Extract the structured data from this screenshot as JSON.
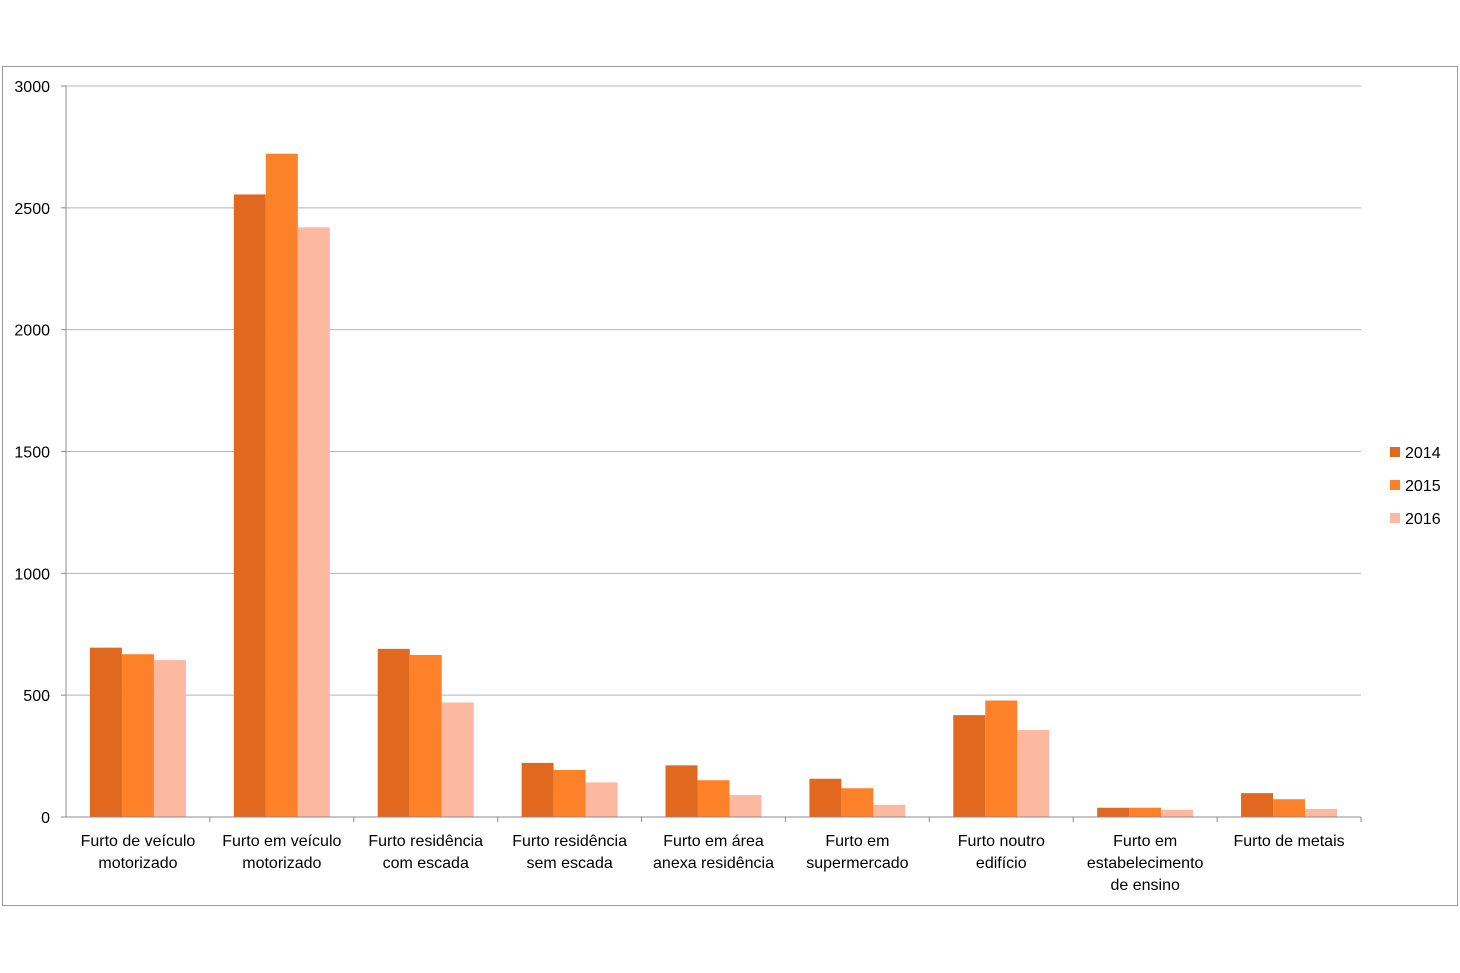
{
  "chart_data": {
    "type": "bar",
    "categories": [
      [
        "Furto de veículo",
        "motorizado"
      ],
      [
        "Furto em veículo",
        "motorizado"
      ],
      [
        "Furto residência",
        "com escada"
      ],
      [
        "Furto residência",
        "sem escada"
      ],
      [
        "Furto em área",
        "anexa residência"
      ],
      [
        "Furto em",
        "supermercado"
      ],
      [
        "Furto noutro",
        "edifício"
      ],
      [
        "Furto em",
        "estabelecimento",
        "de ensino"
      ],
      [
        "Furto de metais"
      ]
    ],
    "series": [
      {
        "name": "2014",
        "color": "#e0691f",
        "values": [
          695,
          2555,
          690,
          222,
          212,
          157,
          418,
          38,
          98
        ]
      },
      {
        "name": "2015",
        "color": "#fd8128",
        "values": [
          668,
          2722,
          665,
          193,
          151,
          118,
          478,
          38,
          73
        ]
      },
      {
        "name": "2016",
        "color": "#fdb8a2",
        "values": [
          644,
          2420,
          470,
          142,
          90,
          50,
          357,
          30,
          33
        ]
      }
    ],
    "ylim": [
      0,
      3000
    ],
    "yticks": [
      0,
      500,
      1000,
      1500,
      2000,
      2500,
      3000
    ],
    "grid": true,
    "legend": "right"
  }
}
